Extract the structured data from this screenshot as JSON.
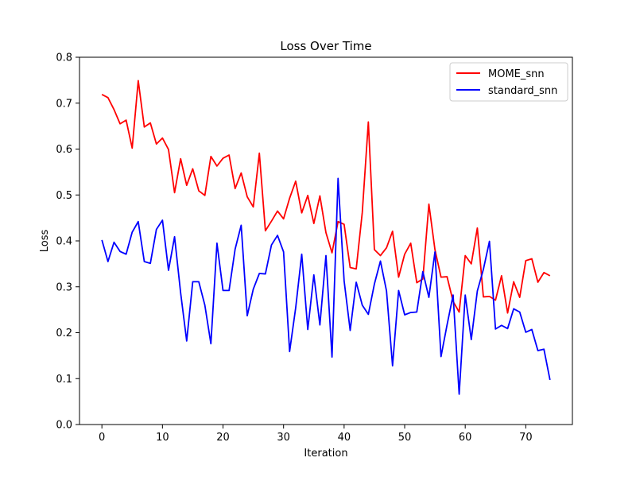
{
  "chart_data": {
    "type": "line",
    "title": "Loss Over Time",
    "xlabel": "Iteration",
    "ylabel": "Loss",
    "xlim": [
      -3.7,
      77.7
    ],
    "ylim": [
      0.0,
      0.8
    ],
    "xticks": [
      0,
      10,
      20,
      30,
      40,
      50,
      60,
      70
    ],
    "yticks": [
      0.0,
      0.1,
      0.2,
      0.3,
      0.4,
      0.5,
      0.6,
      0.7,
      0.8
    ],
    "grid": false,
    "legend_position": "top-right",
    "series": [
      {
        "name": "MOME_snn",
        "color": "#ff0000",
        "values": [
          0.719,
          0.712,
          0.686,
          0.655,
          0.663,
          0.602,
          0.749,
          0.648,
          0.657,
          0.611,
          0.624,
          0.599,
          0.505,
          0.579,
          0.521,
          0.557,
          0.509,
          0.499,
          0.584,
          0.563,
          0.58,
          0.587,
          0.514,
          0.548,
          0.496,
          0.474,
          0.591,
          0.422,
          0.443,
          0.465,
          0.448,
          0.493,
          0.53,
          0.461,
          0.499,
          0.438,
          0.498,
          0.418,
          0.374,
          0.442,
          0.436,
          0.342,
          0.339,
          0.462,
          0.659,
          0.381,
          0.368,
          0.385,
          0.421,
          0.321,
          0.371,
          0.395,
          0.309,
          0.317,
          0.48,
          0.381,
          0.321,
          0.322,
          0.268,
          0.245,
          0.368,
          0.35,
          0.428,
          0.278,
          0.279,
          0.271,
          0.324,
          0.243,
          0.311,
          0.277,
          0.357,
          0.361,
          0.31,
          0.331,
          0.324
        ]
      },
      {
        "name": "standard_snn",
        "color": "#0000ff",
        "values": [
          0.402,
          0.355,
          0.397,
          0.377,
          0.371,
          0.419,
          0.442,
          0.355,
          0.351,
          0.425,
          0.445,
          0.336,
          0.409,
          0.287,
          0.182,
          0.311,
          0.311,
          0.26,
          0.176,
          0.395,
          0.292,
          0.292,
          0.382,
          0.434,
          0.237,
          0.295,
          0.329,
          0.328,
          0.391,
          0.412,
          0.376,
          0.159,
          0.254,
          0.371,
          0.207,
          0.326,
          0.217,
          0.368,
          0.147,
          0.536,
          0.313,
          0.205,
          0.31,
          0.26,
          0.24,
          0.306,
          0.356,
          0.291,
          0.128,
          0.292,
          0.239,
          0.244,
          0.245,
          0.333,
          0.277,
          0.376,
          0.148,
          0.217,
          0.282,
          0.066,
          0.282,
          0.185,
          0.291,
          0.338,
          0.399,
          0.208,
          0.216,
          0.209,
          0.252,
          0.245,
          0.201,
          0.207,
          0.161,
          0.164,
          0.097
        ]
      }
    ]
  }
}
